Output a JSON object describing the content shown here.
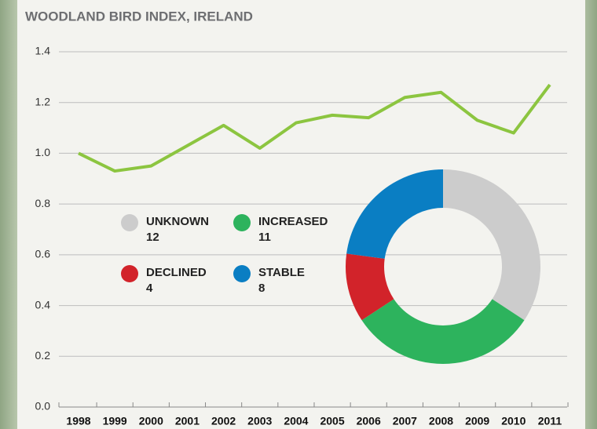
{
  "chart_data": [
    {
      "type": "line",
      "title": "WOODLAND BIRD INDEX, IRELAND",
      "categories": [
        "1998",
        "1999",
        "2000",
        "2001",
        "2002",
        "2003",
        "2004",
        "2005",
        "2006",
        "2007",
        "2008",
        "2009",
        "2010",
        "2011"
      ],
      "values": [
        1.0,
        0.93,
        0.95,
        1.03,
        1.11,
        1.02,
        1.12,
        1.15,
        1.14,
        1.22,
        1.24,
        1.13,
        1.08,
        1.27
      ],
      "color": "#8cc540",
      "ylim": [
        0,
        1.4
      ],
      "yticks": [
        {
          "value": 0,
          "label": "0.0"
        },
        0.2,
        0.4,
        0.6,
        0.8,
        {
          "value": 1,
          "label": "1.0"
        },
        1.2,
        1.4
      ],
      "grid": true
    },
    {
      "type": "donut",
      "categories": [
        "UNKNOWN",
        "INCREASED",
        "DECLINED",
        "STABLE"
      ],
      "values": [
        12,
        11,
        4,
        8
      ],
      "colors": [
        "#cccccc",
        "#2db35d",
        "#d2232a",
        "#0a7ec3"
      ]
    }
  ]
}
